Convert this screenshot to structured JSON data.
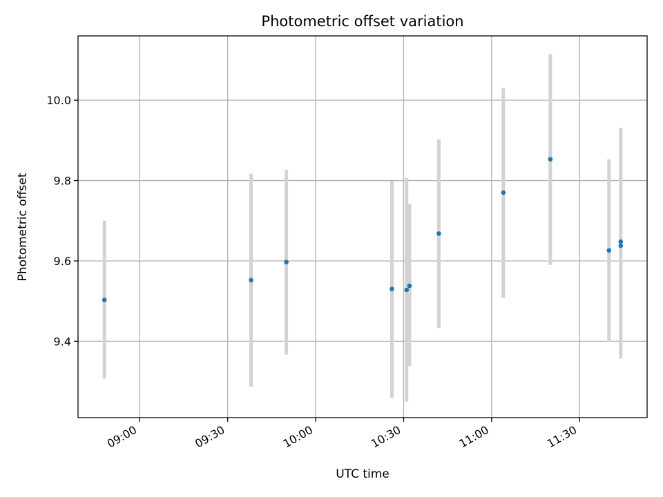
{
  "chart_data": {
    "type": "scatter",
    "title": "Photometric offset variation",
    "xlabel": "UTC time",
    "ylabel": "Photometric offset",
    "xlim": [
      "08:39",
      "11:53"
    ],
    "ylim": [
      9.21,
      10.16
    ],
    "grid": true,
    "legend": "none",
    "x_ticks": [
      "09:00",
      "09:30",
      "10:00",
      "10:30",
      "11:00",
      "11:30"
    ],
    "y_ticks": [
      "9.4",
      "9.6",
      "9.8",
      "10.0"
    ],
    "points": [
      {
        "x": "08:48",
        "y": 9.503,
        "y_low": 9.307,
        "y_high": 9.7
      },
      {
        "x": "09:38",
        "y": 9.552,
        "y_low": 9.287,
        "y_high": 9.817
      },
      {
        "x": "09:50",
        "y": 9.597,
        "y_low": 9.367,
        "y_high": 9.827
      },
      {
        "x": "10:26",
        "y": 9.53,
        "y_low": 9.259,
        "y_high": 9.799
      },
      {
        "x": "10:31",
        "y": 9.528,
        "y_low": 9.25,
        "y_high": 9.807
      },
      {
        "x": "10:32",
        "y": 9.538,
        "y_low": 9.338,
        "y_high": 9.742
      },
      {
        "x": "10:42",
        "y": 9.668,
        "y_low": 9.433,
        "y_high": 9.903
      },
      {
        "x": "11:04",
        "y": 9.77,
        "y_low": 9.508,
        "y_high": 10.03
      },
      {
        "x": "11:20",
        "y": 9.853,
        "y_low": 9.59,
        "y_high": 10.115
      },
      {
        "x": "11:40",
        "y": 9.626,
        "y_low": 9.399,
        "y_high": 9.853
      },
      {
        "x": "11:44",
        "y": 9.638,
        "y_low": 9.357,
        "y_high": 9.919
      },
      {
        "x": "11:44",
        "y": 9.648,
        "y_low": 9.367,
        "y_high": 9.931
      }
    ],
    "colors": {
      "marker": "#1f77b4",
      "errorbar": "#d3d3d3",
      "grid": "#b0b0b0",
      "axes": "#000000"
    }
  }
}
